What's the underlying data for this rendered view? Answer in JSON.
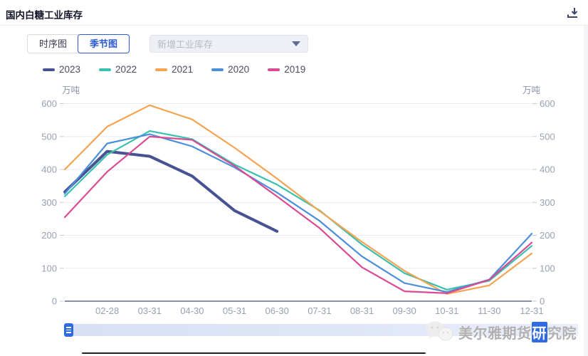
{
  "header": {
    "title": "国内白糖工业库存",
    "download_icon": "download-icon"
  },
  "toolbar": {
    "chart_type_group": [
      {
        "label": "时序图",
        "active": false
      },
      {
        "label": "季节图",
        "active": true
      }
    ],
    "indicator_dropdown": {
      "placeholder": "新增工业库存",
      "caret_icon": "chevron-down-icon",
      "expanded": false
    }
  },
  "axes": {
    "unit_left": "万吨",
    "unit_right": "万吨"
  },
  "chart_data": {
    "type": "line",
    "title": "国内白糖工业库存",
    "unit": "万吨",
    "x_labels": [
      "",
      "02-28",
      "03-31",
      "04-30",
      "05-31",
      "06-30",
      "07-31",
      "08-31",
      "09-30",
      "10-31",
      "11-30",
      "12-31"
    ],
    "ylim": [
      0,
      600
    ],
    "yticks": [
      0,
      100,
      200,
      300,
      400,
      500,
      600
    ],
    "grid": true,
    "legend_position": "top-left",
    "colors": {
      "grid": "#e9ecf4",
      "axis_line": "#5d6690",
      "tick": "#c6cbdb",
      "tick_label": "#9aa0b2"
    },
    "series": [
      {
        "name": "2023",
        "color": "#475293",
        "width": 4,
        "values": [
          332,
          455,
          440,
          380,
          275,
          212,
          null,
          null,
          null,
          null,
          null,
          null
        ]
      },
      {
        "name": "2022",
        "color": "#3ac0ae",
        "width": 2.2,
        "values": [
          318,
          445,
          517,
          492,
          415,
          354,
          276,
          172,
          85,
          35,
          62,
          168
        ]
      },
      {
        "name": "2021",
        "color": "#f5a351",
        "width": 2.2,
        "values": [
          400,
          530,
          595,
          552,
          466,
          372,
          274,
          180,
          92,
          22,
          48,
          145
        ]
      },
      {
        "name": "2020",
        "color": "#4c8fdb",
        "width": 2.2,
        "values": [
          326,
          479,
          507,
          470,
          406,
          330,
          244,
          136,
          55,
          28,
          66,
          205
        ]
      },
      {
        "name": "2019",
        "color": "#d94a92",
        "width": 2.2,
        "values": [
          255,
          393,
          500,
          490,
          411,
          318,
          222,
          103,
          30,
          24,
          65,
          178
        ]
      }
    ]
  },
  "datazoom": {
    "type": "slider",
    "handle_icon": "grip-lines-icon"
  },
  "watermark": {
    "icon": "chat-bubbles-icon",
    "text_prefix": "美尔雅期货",
    "text_highlight": "研",
    "text_suffix": "究院"
  }
}
